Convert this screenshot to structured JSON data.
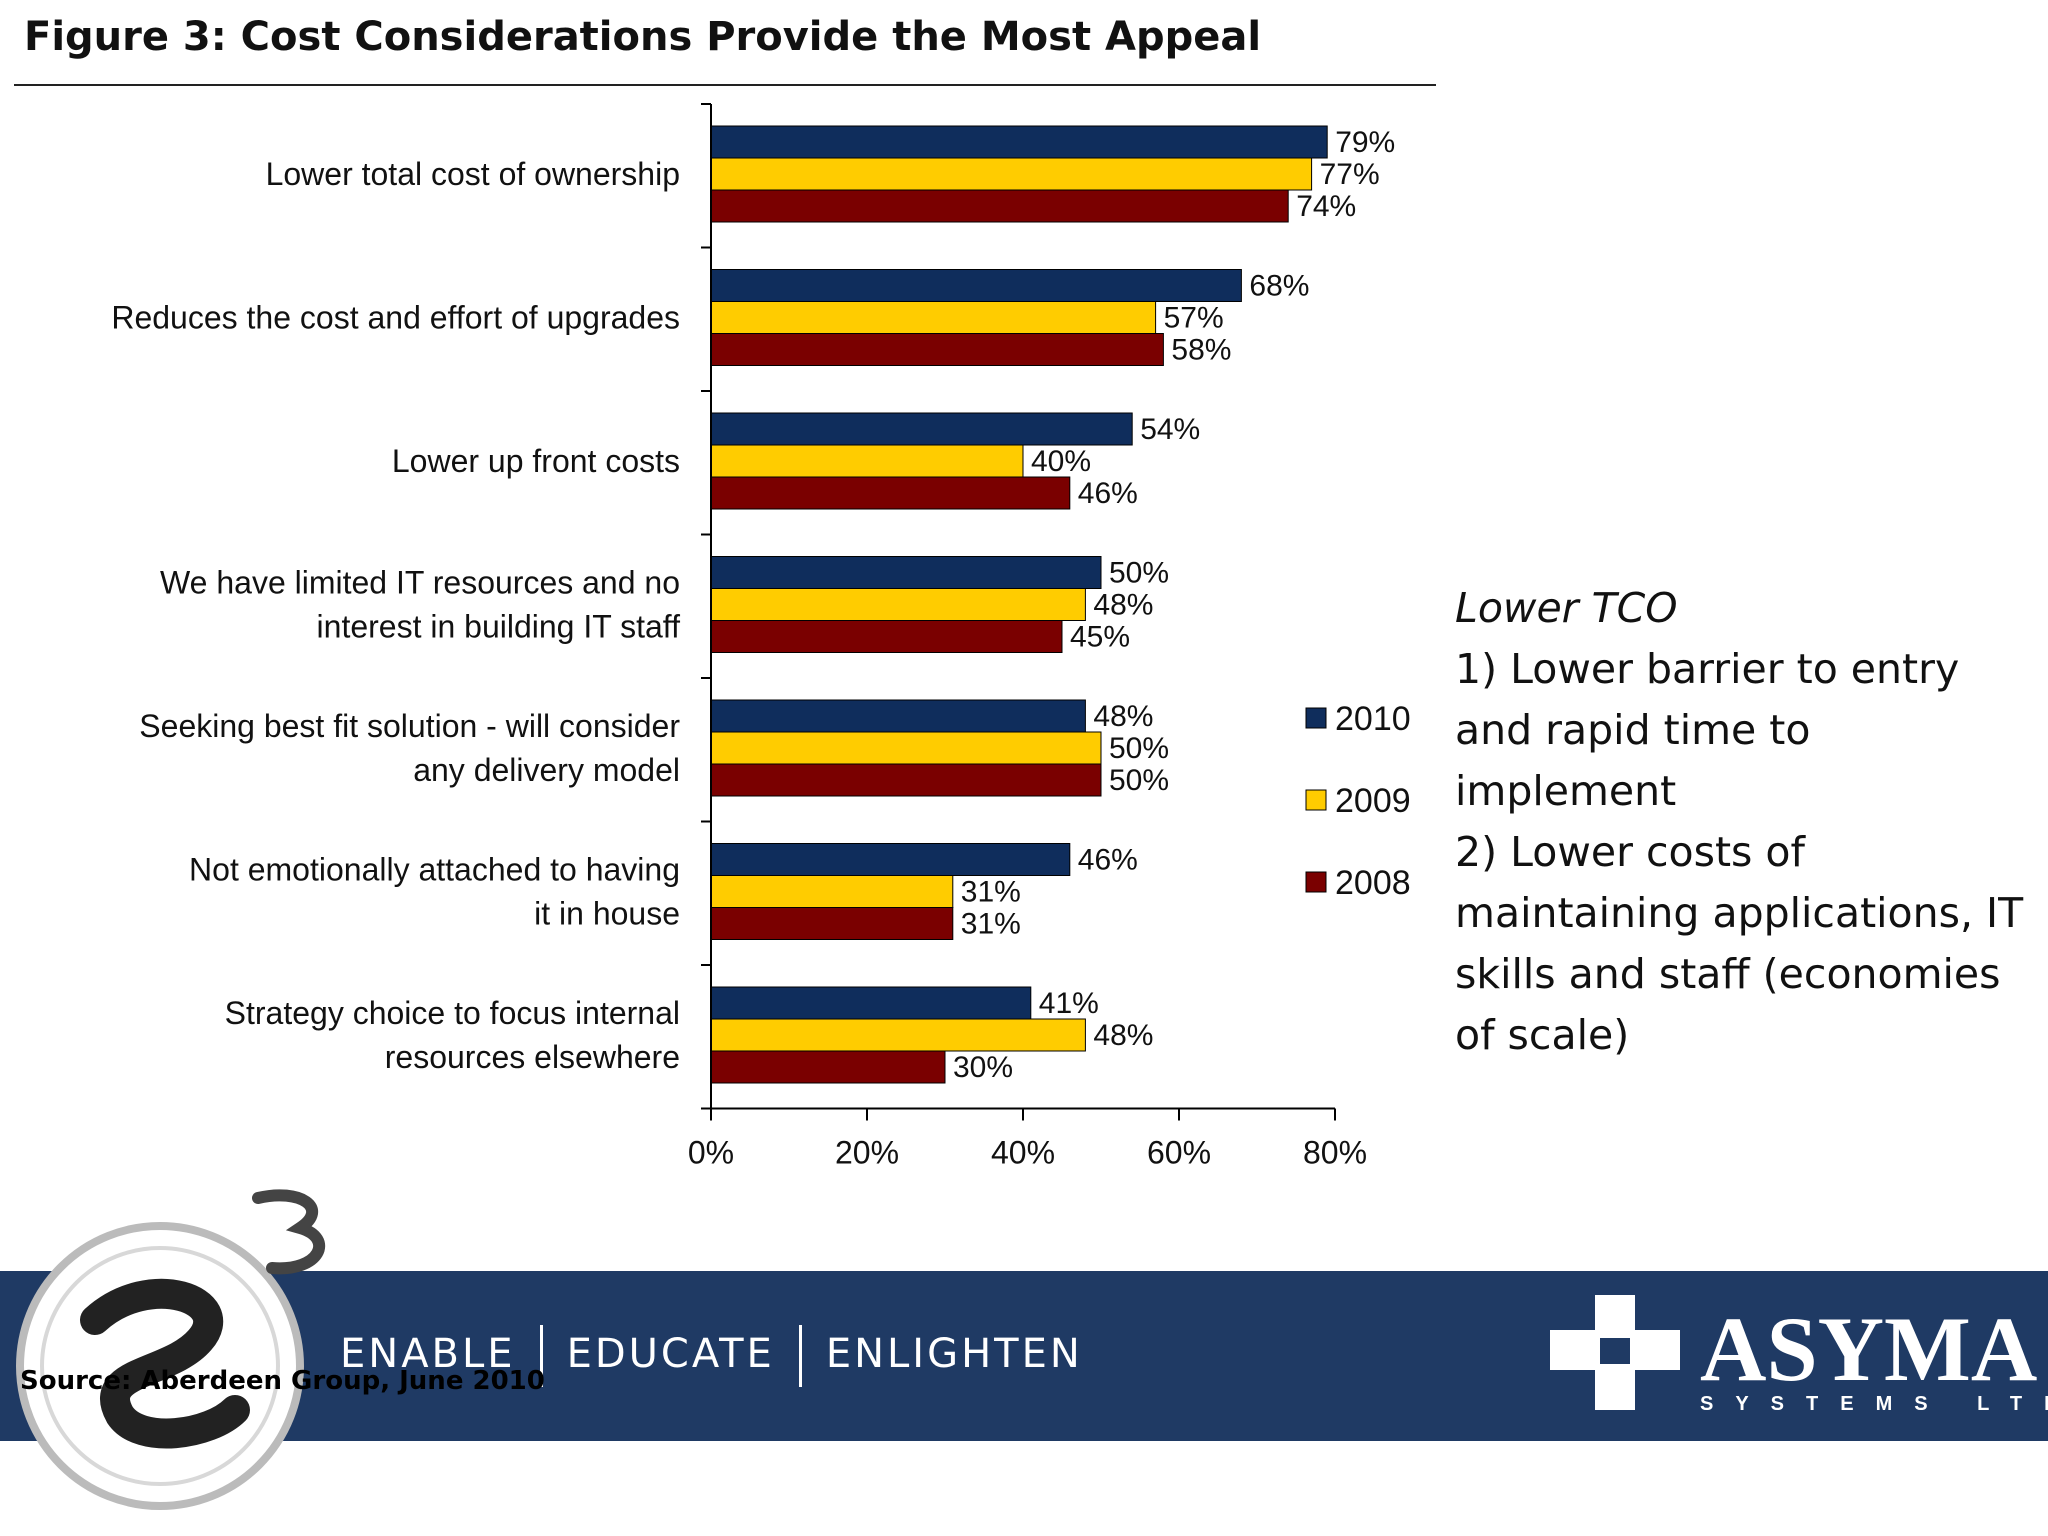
{
  "page": {
    "title": "Figure 3: Cost Considerations Provide the Most Appeal"
  },
  "chart_data": {
    "type": "bar",
    "orientation": "horizontal",
    "title": "Figure 3: Cost Considerations Provide the Most Appeal",
    "categories": [
      [
        "Lower total cost of ownership"
      ],
      [
        "Reduces the cost and effort of upgrades"
      ],
      [
        "Lower up front costs"
      ],
      [
        "We have limited IT resources and no",
        "interest in building IT staff"
      ],
      [
        "Seeking best fit solution - will consider",
        "any delivery model"
      ],
      [
        "Not emotionally attached to having",
        "it in house"
      ],
      [
        "Strategy choice to focus internal",
        "resources elsewhere"
      ]
    ],
    "series": [
      {
        "name": "2010",
        "color": "#0f2d5c",
        "values": [
          79,
          68,
          54,
          50,
          48,
          46,
          41
        ]
      },
      {
        "name": "2009",
        "color": "#ffcc00",
        "values": [
          77,
          57,
          40,
          48,
          50,
          31,
          48
        ]
      },
      {
        "name": "2008",
        "color": "#7a0000",
        "values": [
          74,
          58,
          46,
          45,
          50,
          31,
          30
        ]
      }
    ],
    "xlim": [
      0,
      80
    ],
    "xticks": [
      "0%",
      "20%",
      "40%",
      "60%",
      "80%"
    ],
    "value_suffix": "%",
    "grid": false,
    "legend_position": "right"
  },
  "notes": {
    "heading": "Lower TCO",
    "lines": [
      "1) Lower barrier to entry and rapid time to implement",
      "2) Lower costs of maintaining applications, IT skills and staff (economies of scale)"
    ]
  },
  "footer": {
    "tagline": [
      "ENABLE",
      "EDUCATE",
      "ENLIGHTEN"
    ],
    "source": "Source: Aberdeen Group, June 2010",
    "company_name": "ASYMA",
    "company_sub": "SYSTEMS LTD",
    "band_color": "#1f3a64"
  }
}
